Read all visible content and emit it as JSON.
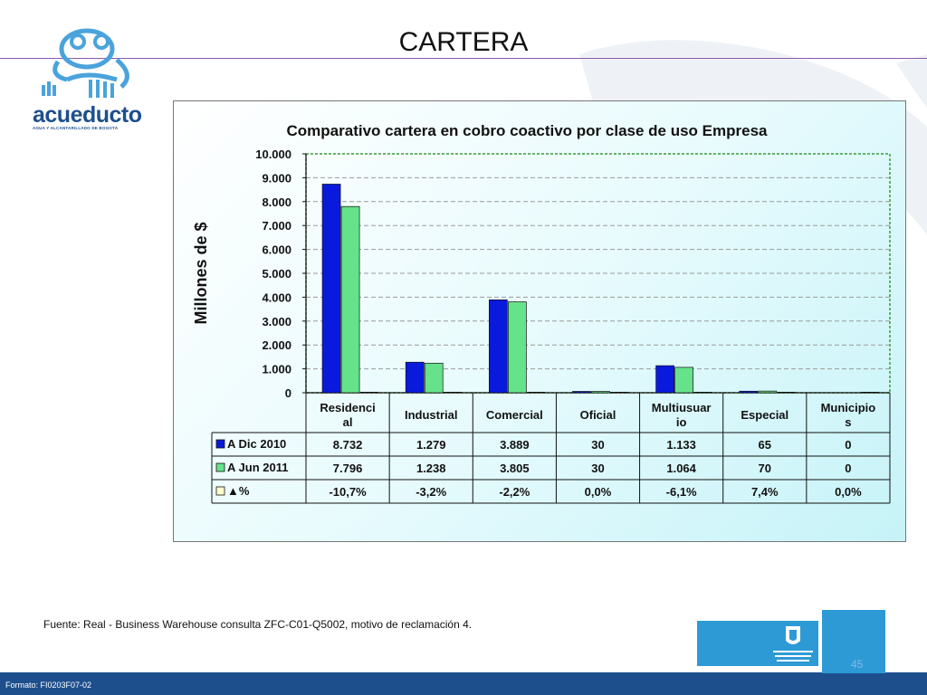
{
  "slide": {
    "title": "CARTERA",
    "source": "Fuente: Real - Business Warehouse consulta ZFC-C01-Q5002, motivo de reclamación 4.",
    "format_code": "Formato: FI0203F07-02",
    "page_number": "45"
  },
  "logo": {
    "name": "acueducto",
    "subtitle": "AGUA Y ALCANTARILLADO DE BOGOTÁ"
  },
  "chart_data": {
    "type": "bar",
    "title": "Comparativo cartera en cobro coactivo por clase de uso Empresa",
    "ylabel": "Millones de $",
    "xlabel": "",
    "ylim": [
      0,
      10000
    ],
    "yticks": [
      "0",
      "1.000",
      "2.000",
      "3.000",
      "4.000",
      "5.000",
      "6.000",
      "7.000",
      "8.000",
      "9.000",
      "10.000"
    ],
    "categories": [
      "Residencial",
      "Industrial",
      "Comercial",
      "Oficial",
      "Multiusuario",
      "Especial",
      "Municipios"
    ],
    "category_display": [
      [
        "Residenci",
        "al"
      ],
      [
        "Industrial"
      ],
      [
        "Comercial"
      ],
      [
        "Oficial"
      ],
      [
        "Multiusuar",
        "io"
      ],
      [
        "Especial"
      ],
      [
        "Municipio",
        "s"
      ]
    ],
    "grid": true,
    "legend": "table",
    "series": [
      {
        "name": "A Dic 2010",
        "color": "#0a1adc",
        "values": [
          8732,
          1279,
          3889,
          30,
          1133,
          65,
          0
        ],
        "labels": [
          "8.732",
          "1.279",
          "3.889",
          "30",
          "1.133",
          "65",
          "0"
        ]
      },
      {
        "name": "A  Jun 2011",
        "color": "#66e28a",
        "values": [
          7796,
          1238,
          3805,
          30,
          1064,
          70,
          0
        ],
        "labels": [
          "7.796",
          "1.238",
          "3.805",
          "30",
          "1.064",
          "70",
          "0"
        ]
      },
      {
        "name": "▲%",
        "color": "#ffffcc",
        "values": [
          -10.7,
          -3.2,
          -2.2,
          0.0,
          -6.1,
          7.4,
          0.0
        ],
        "labels": [
          "-10,7%",
          "-3,2%",
          "-2,2%",
          "0,0%",
          "-6,1%",
          "7,4%",
          "0,0%"
        ]
      }
    ]
  }
}
